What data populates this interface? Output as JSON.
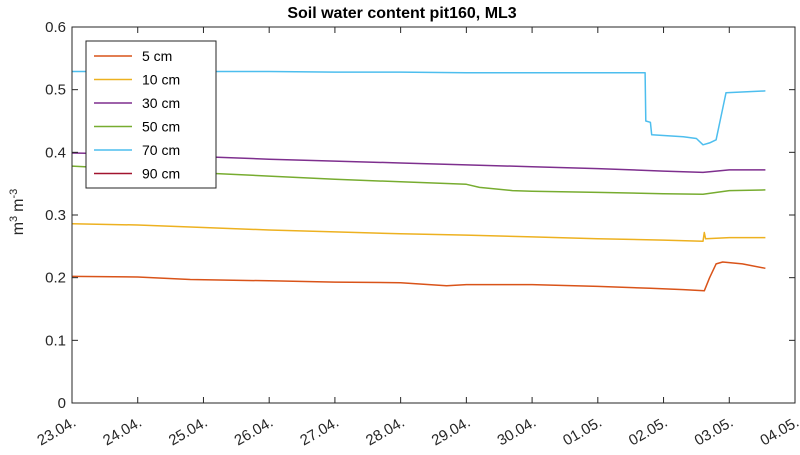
{
  "chart_data": {
    "type": "line",
    "title": "Soil water content pit160, ML3",
    "xlabel": "",
    "ylabel": "m^3 m^-3",
    "ylabel_parts": {
      "base1": "m",
      "exp1": "3",
      "base2": "m",
      "exp2": "-3"
    },
    "xlim": [
      0,
      11
    ],
    "ylim": [
      0,
      0.6
    ],
    "x_tick_labels": [
      "23.04.",
      "24.04.",
      "25.04.",
      "26.04.",
      "27.04.",
      "28.04.",
      "29.04.",
      "30.04.",
      "01.05.",
      "02.05.",
      "03.05.",
      "04.05."
    ],
    "y_ticks": [
      0,
      0.1,
      0.2,
      0.3,
      0.4,
      0.5,
      0.6
    ],
    "y_tick_labels": [
      "0",
      "0.1",
      "0.2",
      "0.3",
      "0.4",
      "0.5",
      "0.6"
    ],
    "grid": false,
    "legend_position": "top-left",
    "series": [
      {
        "name": "5 cm",
        "color": "#D95319",
        "points": [
          [
            0,
            0.202
          ],
          [
            1,
            0.201
          ],
          [
            1.8,
            0.197
          ],
          [
            3,
            0.195
          ],
          [
            4,
            0.193
          ],
          [
            5,
            0.192
          ],
          [
            5.7,
            0.187
          ],
          [
            6,
            0.189
          ],
          [
            7,
            0.189
          ],
          [
            8,
            0.186
          ],
          [
            8.8,
            0.183
          ],
          [
            9.3,
            0.181
          ],
          [
            9.62,
            0.179
          ],
          [
            9.7,
            0.2
          ],
          [
            9.8,
            0.222
          ],
          [
            9.9,
            0.225
          ],
          [
            10.2,
            0.222
          ],
          [
            10.55,
            0.215
          ]
        ]
      },
      {
        "name": "10 cm",
        "color": "#EDB120",
        "points": [
          [
            0,
            0.286
          ],
          [
            1,
            0.284
          ],
          [
            2,
            0.28
          ],
          [
            3,
            0.276
          ],
          [
            4,
            0.273
          ],
          [
            5,
            0.27
          ],
          [
            6,
            0.268
          ],
          [
            7,
            0.265
          ],
          [
            8,
            0.262
          ],
          [
            9,
            0.26
          ],
          [
            9.6,
            0.258
          ],
          [
            9.62,
            0.272
          ],
          [
            9.64,
            0.262
          ],
          [
            10,
            0.264
          ],
          [
            10.55,
            0.264
          ]
        ]
      },
      {
        "name": "30 cm",
        "color": "#7E2F8E",
        "points": [
          [
            0,
            0.399
          ],
          [
            1,
            0.397
          ],
          [
            2,
            0.393
          ],
          [
            3,
            0.389
          ],
          [
            4,
            0.386
          ],
          [
            5,
            0.383
          ],
          [
            6,
            0.38
          ],
          [
            7,
            0.377
          ],
          [
            8,
            0.374
          ],
          [
            9,
            0.37
          ],
          [
            9.6,
            0.368
          ],
          [
            10,
            0.372
          ],
          [
            10.55,
            0.372
          ]
        ]
      },
      {
        "name": "50 cm",
        "color": "#77AC30",
        "points": [
          [
            0,
            0.378
          ],
          [
            1,
            0.373
          ],
          [
            2,
            0.367
          ],
          [
            3,
            0.362
          ],
          [
            4,
            0.357
          ],
          [
            5,
            0.353
          ],
          [
            6,
            0.349
          ],
          [
            6.2,
            0.344
          ],
          [
            6.7,
            0.339
          ],
          [
            7,
            0.338
          ],
          [
            8,
            0.336
          ],
          [
            9,
            0.334
          ],
          [
            9.6,
            0.333
          ],
          [
            10,
            0.339
          ],
          [
            10.55,
            0.34
          ]
        ]
      },
      {
        "name": "70 cm",
        "color": "#4DBEEE",
        "points": [
          [
            0,
            0.529
          ],
          [
            1,
            0.529
          ],
          [
            2,
            0.529
          ],
          [
            3,
            0.529
          ],
          [
            4,
            0.528
          ],
          [
            5,
            0.528
          ],
          [
            6,
            0.527
          ],
          [
            7,
            0.527
          ],
          [
            8,
            0.527
          ],
          [
            8.72,
            0.527
          ],
          [
            8.73,
            0.45
          ],
          [
            8.8,
            0.448
          ],
          [
            8.82,
            0.428
          ],
          [
            9.3,
            0.425
          ],
          [
            9.5,
            0.422
          ],
          [
            9.6,
            0.412
          ],
          [
            9.7,
            0.415
          ],
          [
            9.8,
            0.42
          ],
          [
            9.9,
            0.47
          ],
          [
            9.95,
            0.495
          ],
          [
            10.55,
            0.498
          ]
        ]
      },
      {
        "name": "90 cm",
        "color": "#A2142F",
        "points": []
      }
    ]
  }
}
